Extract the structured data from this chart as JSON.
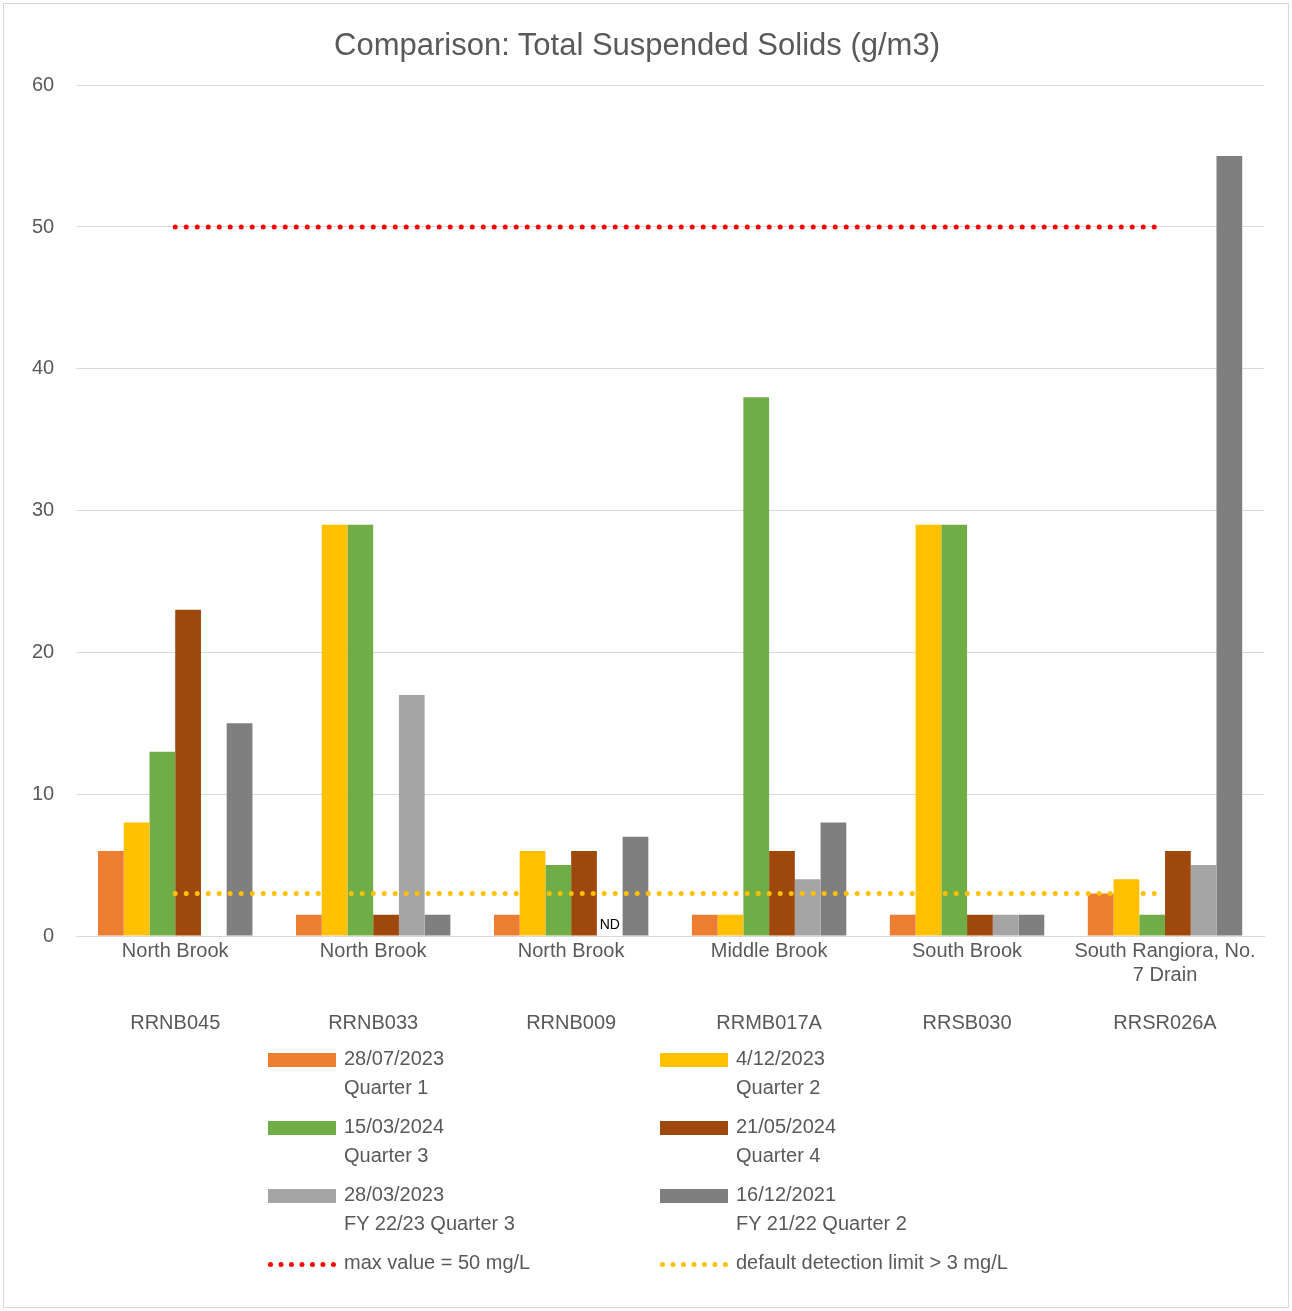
{
  "chart_data": {
    "type": "bar",
    "title": "Comparison: Total Suspended Solids (g/m3)",
    "categories": [
      "North Brook\nRRNB045",
      "North Brook\nRRNB033",
      "North Brook\nRRNB009",
      "Middle Brook\nRRMB017A",
      "South Brook\nRRSB030",
      "South Rangiora, No. 7 Drain\nRRSR026A"
    ],
    "series": [
      {
        "name": "28/07/2023\nQuarter 1",
        "color": "#ed7d31",
        "values": [
          6,
          1.5,
          1.5,
          1.5,
          1.5,
          3
        ]
      },
      {
        "name": "4/12/2023\nQuarter 2",
        "color": "#ffc000",
        "values": [
          8,
          29,
          6,
          1.5,
          29,
          4
        ]
      },
      {
        "name": "15/03/2024\nQuarter 3",
        "color": "#70ad47",
        "values": [
          13,
          29,
          5,
          38,
          29,
          1.5
        ]
      },
      {
        "name": "21/05/2024\nQuarter 4",
        "color": "#9e480e",
        "values": [
          23,
          1.5,
          6,
          6,
          1.5,
          6
        ]
      },
      {
        "name": "28/03/2023\nFY 22/23 Quarter 3",
        "color": "#a5a5a5",
        "values": [
          null,
          17,
          null,
          4,
          1.5,
          5
        ],
        "value_labels": [
          null,
          null,
          "ND",
          null,
          null,
          null
        ]
      },
      {
        "name": "16/12/2021\nFY 21/22 Quarter 2",
        "color": "#7f7f7f",
        "values": [
          15,
          1.5,
          7,
          8,
          1.5,
          55
        ]
      }
    ],
    "ref_lines": [
      {
        "axis": "y",
        "value": 50,
        "label": "max value = 50 mg/L",
        "color": "#ff0000",
        "line_style": "dotted"
      },
      {
        "axis": "y",
        "value": 3,
        "label": "default detection limit > 3 mg/L",
        "color": "#ffc000",
        "line_style": "dotted"
      }
    ],
    "ylim": [
      0,
      60
    ],
    "yticks": [
      0,
      10,
      20,
      30,
      40,
      50,
      60
    ],
    "grid": "y",
    "legend": "bottom"
  }
}
